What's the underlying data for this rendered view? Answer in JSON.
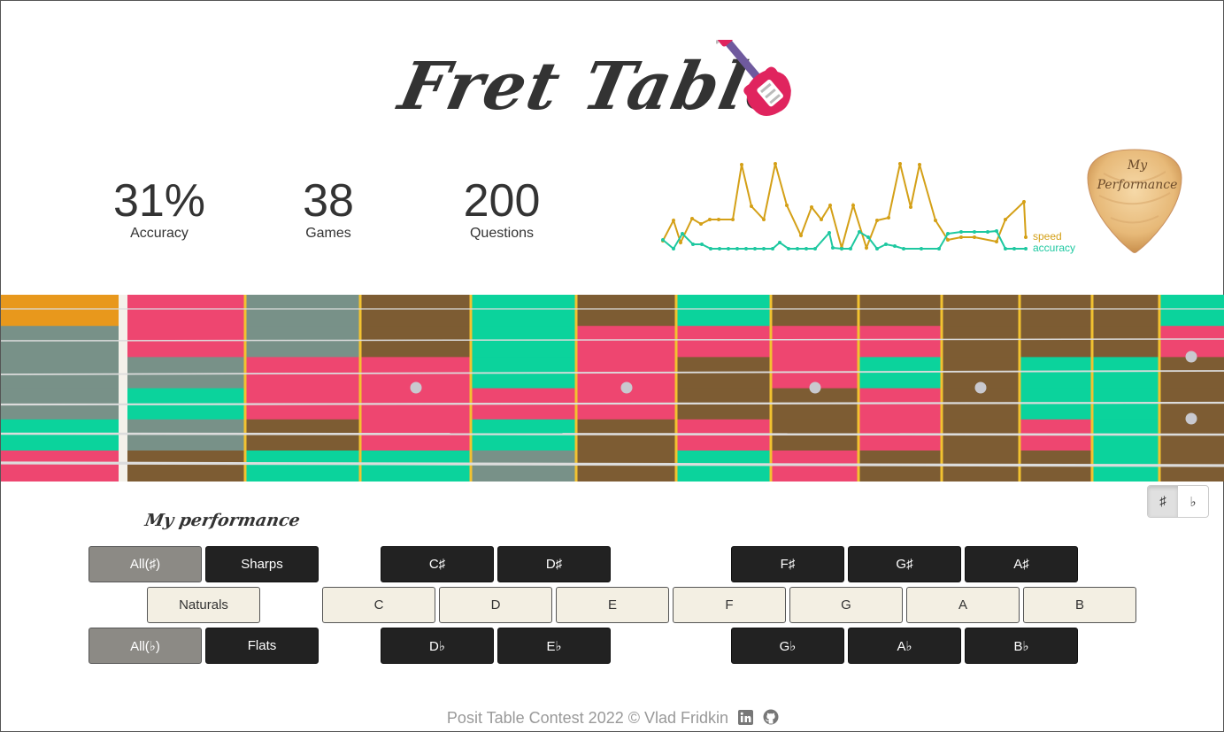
{
  "app": {
    "title": "Fret Table"
  },
  "stats": [
    {
      "value": "31%",
      "label": "Accuracy"
    },
    {
      "value": "38",
      "label": "Games"
    },
    {
      "value": "200",
      "label": "Questions"
    }
  ],
  "sparkline": {
    "legend_speed": "speed",
    "legend_accuracy": "accuracy",
    "colors": {
      "speed": "#d4a017",
      "accuracy": "#1ec8a0"
    }
  },
  "pick": {
    "line1": "My",
    "line2": "Performance"
  },
  "toggle": {
    "sharp": "♯",
    "flat": "♭",
    "selected": "sharp"
  },
  "section_label": "My performance",
  "notes": {
    "sharps_row": {
      "all": "All(♯)",
      "group": "Sharps",
      "keys": [
        "C♯",
        "D♯",
        "F♯",
        "G♯",
        "A♯"
      ]
    },
    "naturals_row": {
      "group": "Naturals",
      "keys": [
        "C",
        "D",
        "E",
        "F",
        "G",
        "A",
        "B"
      ]
    },
    "flats_row": {
      "all": "All(♭)",
      "group": "Flats",
      "keys": [
        "D♭",
        "E♭",
        "G♭",
        "A♭",
        "B♭"
      ]
    }
  },
  "footer": {
    "text": "Posit Table Contest 2022 © Vlad Fridkin",
    "icons": [
      "linkedin-icon",
      "github-icon"
    ]
  },
  "colors": {
    "red": "#ee4670",
    "green": "#0bd39c",
    "brown": "#7d5c33",
    "grey": "#789188",
    "orange": "#e8981c",
    "fret": "#f2c230"
  }
}
